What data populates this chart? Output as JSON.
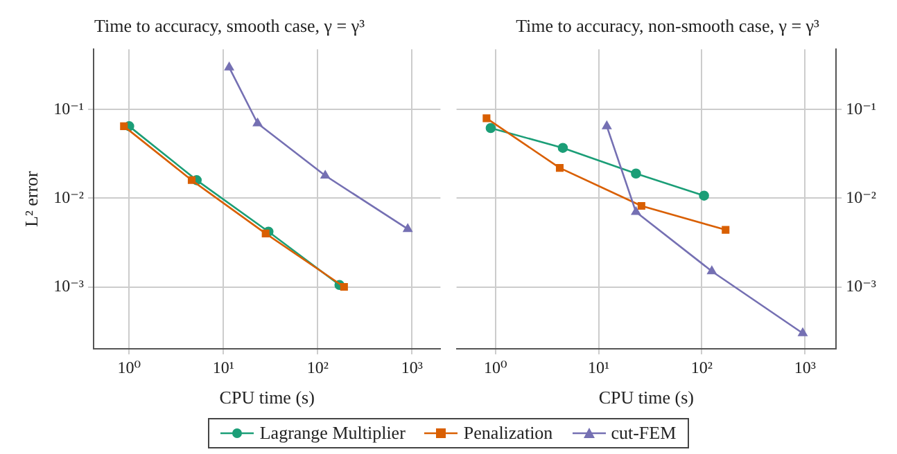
{
  "chart_data": [
    {
      "type": "line",
      "title": "Time to accuracy, smooth case, γ = γ³",
      "xlabel": "CPU time (s)",
      "ylabel": "L² error",
      "log": "xy",
      "grid": true,
      "legend": "bottom",
      "xlim": [
        0.42,
        2000
      ],
      "ylim": [
        0.0002,
        0.48
      ],
      "xticks": [
        {
          "value": 1,
          "label": "10⁰"
        },
        {
          "value": 10,
          "label": "10¹"
        },
        {
          "value": 100,
          "label": "10²"
        },
        {
          "value": 1000,
          "label": "10³"
        }
      ],
      "yticks": [
        {
          "value": 0.001,
          "label": "10⁻³"
        },
        {
          "value": 0.01,
          "label": "10⁻²"
        },
        {
          "value": 0.1,
          "label": "10⁻¹"
        }
      ],
      "series": [
        {
          "name": "Lagrange Multiplier",
          "color": "#1b9e77",
          "marker": "circle",
          "x": [
            1.0,
            5.2,
            30,
            170
          ],
          "values": [
            0.065,
            0.016,
            0.0042,
            0.00105
          ]
        },
        {
          "name": "Penalization",
          "color": "#d95f02",
          "marker": "square",
          "x": [
            0.88,
            4.6,
            28,
            190
          ],
          "values": [
            0.065,
            0.016,
            0.004,
            0.001
          ]
        },
        {
          "name": "cut-FEM",
          "color": "#7570b3",
          "marker": "triangle",
          "x": [
            11.5,
            23,
            120,
            900
          ],
          "values": [
            0.3,
            0.07,
            0.018,
            0.0045
          ]
        }
      ]
    },
    {
      "type": "line",
      "title": "Time to accuracy, non-smooth case, γ = γ³",
      "xlabel": "CPU time (s)",
      "log": "xy",
      "grid": true,
      "xlim": [
        0.42,
        2000
      ],
      "ylim": [
        0.0002,
        0.48
      ],
      "xticks": [
        {
          "value": 1,
          "label": "10⁰"
        },
        {
          "value": 10,
          "label": "10¹"
        },
        {
          "value": 100,
          "label": "10²"
        },
        {
          "value": 1000,
          "label": "10³"
        }
      ],
      "yticks": [
        {
          "value": 0.001,
          "label": "10⁻³"
        },
        {
          "value": 0.01,
          "label": "10⁻²"
        },
        {
          "value": 0.1,
          "label": "10⁻¹"
        }
      ],
      "series": [
        {
          "color": "#1b9e77",
          "marker": "circle",
          "x": [
            0.9,
            4.5,
            23,
            105
          ],
          "values": [
            0.062,
            0.037,
            0.019,
            0.0107
          ]
        },
        {
          "color": "#d95f02",
          "marker": "square",
          "x": [
            0.82,
            4.2,
            26,
            170
          ],
          "values": [
            0.08,
            0.022,
            0.0082,
            0.0044
          ]
        },
        {
          "color": "#7570b3",
          "marker": "triangle",
          "x": [
            12,
            23,
            125,
            950
          ],
          "values": [
            0.065,
            0.007,
            0.0015,
            0.0003
          ]
        }
      ]
    }
  ]
}
